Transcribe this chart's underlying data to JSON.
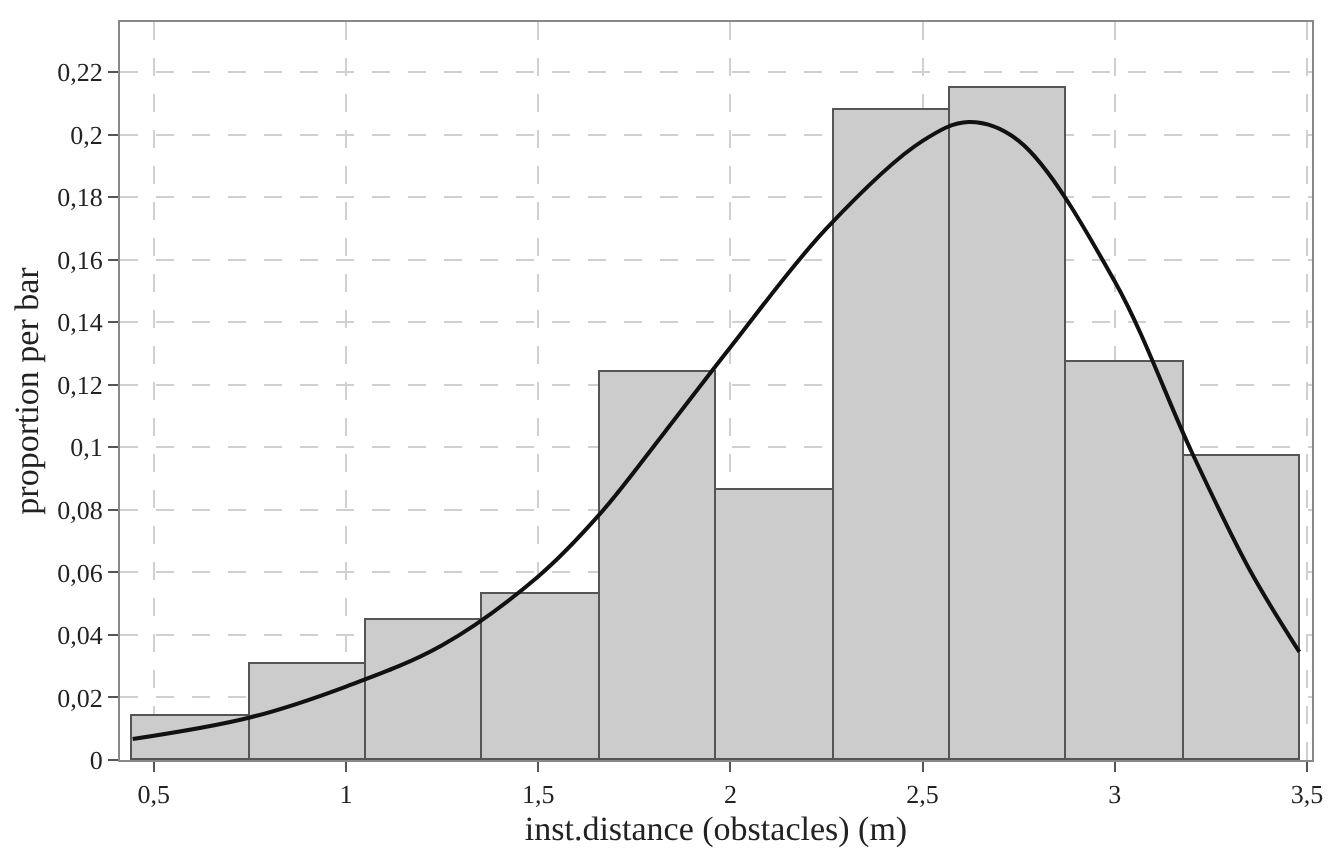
{
  "chart_data": {
    "type": "histogram",
    "xlabel": "inst.distance (obstacles) (m)",
    "ylabel": "proportion per bar",
    "bins": [
      0.445,
      0.749,
      1.052,
      1.356,
      1.66,
      1.963,
      2.267,
      2.571,
      2.874,
      3.178,
      3.481
    ],
    "values": [
      0.0143,
      0.0304,
      0.0449,
      0.0528,
      0.124,
      0.0864,
      0.208,
      0.215,
      0.127,
      0.0972
    ],
    "color": "#cccccc",
    "series": [
      {
        "type": "line",
        "color": "#111111",
        "x": [
          0.445,
          0.75,
          1.0,
          1.25,
          1.5,
          1.66,
          1.83,
          2.0,
          2.25,
          2.5,
          2.62,
          2.75,
          3.0,
          3.2,
          3.35,
          3.48
        ],
        "values": [
          0.0067,
          0.0136,
          0.0235,
          0.0367,
          0.0587,
          0.0786,
          0.105,
          0.132,
          0.17,
          0.198,
          0.204,
          0.198,
          0.153,
          0.0985,
          0.061,
          0.0346
        ]
      }
    ],
    "xlim": [
      0.412,
      3.513
    ],
    "ylim": [
      0,
      0.236
    ],
    "xticks": [
      {
        "value": 0.5,
        "label": "0,5"
      },
      1,
      {
        "value": 1.5,
        "label": "1,5"
      },
      2,
      {
        "value": 2.5,
        "label": "2,5"
      },
      3,
      {
        "value": 3.5,
        "label": "3,5"
      }
    ],
    "yticks": [
      0,
      {
        "value": 0.02,
        "label": "0,02"
      },
      {
        "value": 0.04,
        "label": "0,04"
      },
      {
        "value": 0.06,
        "label": "0,06"
      },
      {
        "value": 0.08,
        "label": "0,08"
      },
      {
        "value": 0.1,
        "label": "0,1"
      },
      {
        "value": 0.12,
        "label": "0,12"
      },
      {
        "value": 0.14,
        "label": "0,14"
      },
      {
        "value": 0.16,
        "label": "0,16"
      },
      {
        "value": 0.18,
        "label": "0,18"
      },
      {
        "value": 0.2,
        "label": "0,2"
      },
      {
        "value": 0.22,
        "label": "0,22"
      }
    ],
    "grid": true
  }
}
